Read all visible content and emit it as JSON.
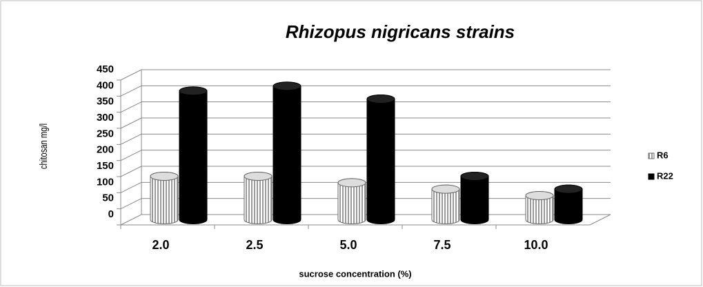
{
  "chart_data": {
    "type": "bar3d",
    "title": "Rhizopus nigricans strains",
    "x_label": "sucrose concentration (%)",
    "y_label": "chitosan mg/l",
    "categories": [
      "2.0",
      "2.5",
      "5.0",
      "7.5",
      "10.0"
    ],
    "series": [
      {
        "name": "R6",
        "color": "#9a9a9a",
        "values": [
          135,
          135,
          115,
          95,
          75
        ]
      },
      {
        "name": "R22",
        "color": "#000000",
        "values": [
          400,
          415,
          375,
          135,
          95
        ]
      }
    ],
    "ylim": [
      0,
      450
    ],
    "yticks": [
      0,
      50,
      100,
      150,
      200,
      250,
      300,
      350,
      400,
      450
    ],
    "grid": true,
    "legend": "right"
  }
}
